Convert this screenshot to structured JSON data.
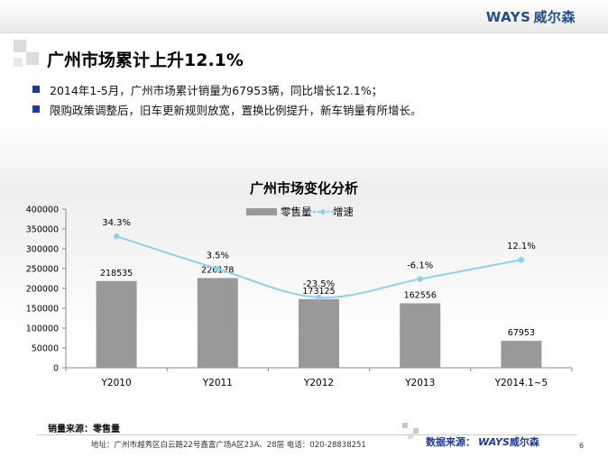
{
  "header": {
    "logo_text": "WAYS",
    "logo_cn": "威尔森"
  },
  "slide": {
    "title": "广州市场累计上升12.1%",
    "bullets": [
      "2014年1-5月，广州市场累计销量为67953辆，同比增长12.1%；",
      "限购政策调整后，旧车更新规则放宽，置换比例提升，新车销量有所增长。"
    ]
  },
  "chart_data": {
    "type": "bar",
    "title": "广州市场变化分析",
    "categories": [
      "Y2010",
      "Y2011",
      "Y2012",
      "Y2013",
      "Y2014.1~5"
    ],
    "series": [
      {
        "name": "零售量",
        "type": "bar",
        "values": [
          218535,
          226178,
          173125,
          162556,
          67953
        ],
        "color": "#999999",
        "labels": [
          "218535",
          "226178",
          "173125",
          "162556",
          "67953"
        ]
      },
      {
        "name": "增速",
        "type": "line",
        "values": [
          34.3,
          3.5,
          -23.5,
          -6.1,
          12.1
        ],
        "color": "#8fd0ec",
        "labels": [
          "34.3%",
          "3.5%",
          "-23.5%",
          "-6.1%",
          "12.1%"
        ]
      }
    ],
    "y_ticks": [
      "0",
      "50000",
      "100000",
      "150000",
      "200000",
      "250000",
      "300000",
      "350000",
      "400000"
    ],
    "ylim": [
      0,
      400000
    ],
    "legend_position": "top-center",
    "grid": false
  },
  "footer": {
    "source_left": "销量来源：零售量",
    "address": "地址：广州市越秀区白云路22号嘉富广场A区23A、28层   电话：020-28838251",
    "source_right_label": "数据来源：",
    "source_right_brand": "WAYS",
    "source_right_cn": "威尔森",
    "page_number": "6"
  },
  "colors": {
    "accent": "#1f3a93",
    "logo": "#1f4e8c"
  }
}
